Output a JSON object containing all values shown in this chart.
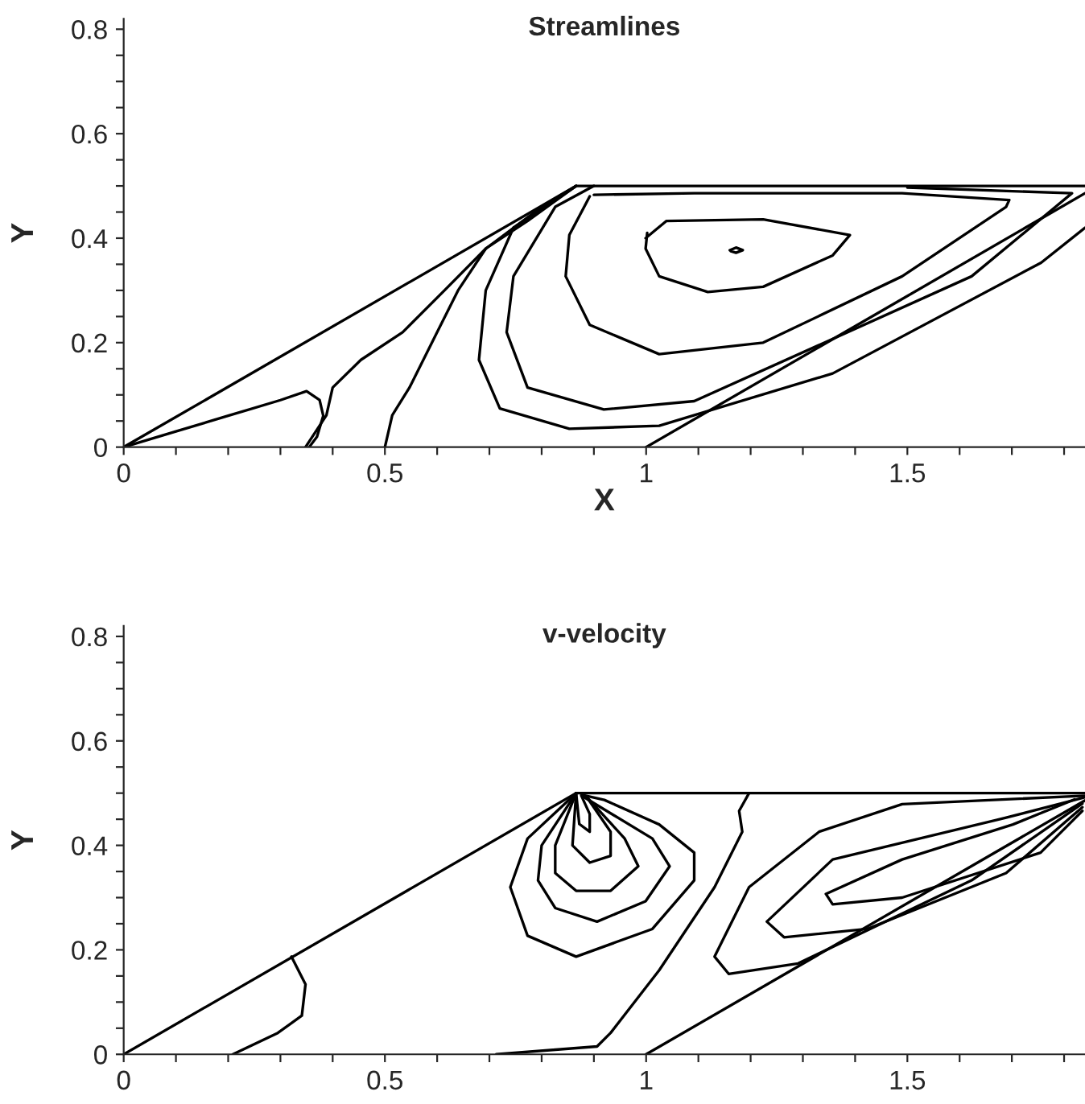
{
  "chart_data": [
    {
      "type": "line",
      "title": "Streamlines",
      "xlabel": "X",
      "ylabel": "Y",
      "xlim": [
        0,
        1.84
      ],
      "ylim": [
        0,
        0.82
      ],
      "xticks": [
        0,
        {
          "value": 0.1,
          "label": null
        },
        {
          "value": 0.2,
          "label": null
        },
        {
          "value": 0.3,
          "label": null
        },
        {
          "value": 0.4,
          "label": null
        },
        0.5,
        {
          "value": 0.6,
          "label": null
        },
        {
          "value": 0.7,
          "label": null
        },
        {
          "value": 0.8,
          "label": null
        },
        {
          "value": 0.9,
          "label": null
        },
        1,
        {
          "value": 1.1,
          "label": null
        },
        {
          "value": 1.2,
          "label": null
        },
        {
          "value": 1.3,
          "label": null
        },
        {
          "value": 1.4,
          "label": null
        },
        1.5,
        {
          "value": 1.6,
          "label": null
        },
        {
          "value": 1.7,
          "label": null
        },
        {
          "value": 1.8,
          "label": null
        }
      ],
      "yticks": [
        0,
        {
          "value": 0.05,
          "label": null
        },
        {
          "value": 0.1,
          "label": null
        },
        {
          "value": 0.15,
          "label": null
        },
        0.2,
        {
          "value": 0.25,
          "label": null
        },
        {
          "value": 0.3,
          "label": null
        },
        {
          "value": 0.35,
          "label": null
        },
        0.4,
        {
          "value": 0.45,
          "label": null
        },
        {
          "value": 0.5,
          "label": null
        },
        {
          "value": 0.55,
          "label": null
        },
        0.6,
        {
          "value": 0.65,
          "label": null
        },
        {
          "value": 0.7,
          "label": null
        },
        {
          "value": 0.75,
          "label": null
        },
        0.8
      ],
      "grid": false,
      "legend": false,
      "marker": "none",
      "line_style": "solid",
      "series": [
        {
          "color": "#000000",
          "x": [
            0,
            0.866,
            1.84
          ],
          "values": [
            0,
            0.5,
            0.5
          ]
        },
        {
          "color": "#000000",
          "x": [
            1,
            1.84
          ],
          "values": [
            0,
            0.486
          ]
        },
        {
          "color": "#000000",
          "x": [
            0,
            0.1,
            0.2,
            0.3,
            0.35,
            0.375,
            0.382,
            0.37,
            0.355
          ],
          "values": [
            0,
            0.03,
            0.06,
            0.09,
            0.107,
            0.09,
            0.06,
            0.02,
            0
          ]
        },
        {
          "color": "#000000",
          "x": [
            0.348,
            0.388,
            0.4,
            0.454,
            0.534,
            0.614,
            0.693,
            0.773,
            0.866
          ],
          "values": [
            0,
            0.061,
            0.114,
            0.167,
            0.22,
            0.3,
            0.38,
            0.433,
            0.5
          ]
        },
        {
          "color": "#000000",
          "x": [
            0.5,
            0.514,
            0.547,
            0.6,
            0.64,
            0.693,
            0.8,
            0.866
          ],
          "values": [
            0,
            0.061,
            0.114,
            0.22,
            0.3,
            0.38,
            0.46,
            0.5
          ]
        },
        {
          "color": "#000000",
          "x": [
            0.866,
            0.746,
            0.693,
            0.68,
            0.72,
            0.853,
            1.025,
            1.357,
            1.756,
            1.84
          ],
          "values": [
            0.5,
            0.42,
            0.3,
            0.167,
            0.074,
            0.035,
            0.041,
            0.141,
            0.353,
            0.42
          ]
        },
        {
          "color": "#000000",
          "x": [
            0.9,
            0.826,
            0.746,
            0.733,
            0.773,
            0.919,
            1.092,
            1.357,
            1.623,
            1.815,
            1.5
          ],
          "values": [
            0.5,
            0.46,
            0.327,
            0.22,
            0.114,
            0.072,
            0.088,
            0.207,
            0.327,
            0.486,
            0.497
          ]
        },
        {
          "color": "#000000",
          "x": [
            0.892,
            0.853,
            0.846,
            0.892,
            1.025,
            1.224,
            1.49,
            1.689,
            1.695,
            1.49,
            1.092,
            0.9
          ],
          "values": [
            0.48,
            0.406,
            0.327,
            0.234,
            0.178,
            0.2,
            0.327,
            0.46,
            0.473,
            0.486,
            0.486,
            0.483
          ]
        },
        {
          "color": "#000000",
          "x": [
            0.999,
            1.039,
            1.224,
            1.39,
            1.357,
            1.224,
            1.118,
            1.025,
            0.999,
            1.002
          ],
          "values": [
            0.4,
            0.433,
            0.436,
            0.406,
            0.367,
            0.307,
            0.297,
            0.327,
            0.38,
            0.41
          ]
        },
        {
          "color": "#000000",
          "x": [
            1.16,
            1.172,
            1.185,
            1.172,
            1.162
          ],
          "values": [
            0.377,
            0.382,
            0.377,
            0.372,
            0.375
          ]
        }
      ]
    },
    {
      "type": "line",
      "title": "v-velocity",
      "ylabel": "Y",
      "xlim": [
        0,
        1.84
      ],
      "ylim": [
        0,
        0.82
      ],
      "xticks": [
        0,
        {
          "value": 0.1,
          "label": null
        },
        {
          "value": 0.2,
          "label": null
        },
        {
          "value": 0.3,
          "label": null
        },
        {
          "value": 0.4,
          "label": null
        },
        0.5,
        {
          "value": 0.6,
          "label": null
        },
        {
          "value": 0.7,
          "label": null
        },
        {
          "value": 0.8,
          "label": null
        },
        {
          "value": 0.9,
          "label": null
        },
        1,
        {
          "value": 1.1,
          "label": null
        },
        {
          "value": 1.2,
          "label": null
        },
        {
          "value": 1.3,
          "label": null
        },
        {
          "value": 1.4,
          "label": null
        },
        1.5,
        {
          "value": 1.6,
          "label": null
        },
        {
          "value": 1.7,
          "label": null
        },
        {
          "value": 1.8,
          "label": null
        }
      ],
      "yticks": [
        0,
        {
          "value": 0.05,
          "label": null
        },
        {
          "value": 0.1,
          "label": null
        },
        {
          "value": 0.15,
          "label": null
        },
        0.2,
        {
          "value": 0.25,
          "label": null
        },
        {
          "value": 0.3,
          "label": null
        },
        {
          "value": 0.35,
          "label": null
        },
        0.4,
        {
          "value": 0.45,
          "label": null
        },
        {
          "value": 0.5,
          "label": null
        },
        {
          "value": 0.55,
          "label": null
        },
        0.6,
        {
          "value": 0.65,
          "label": null
        },
        {
          "value": 0.7,
          "label": null
        },
        {
          "value": 0.75,
          "label": null
        },
        0.8
      ],
      "grid": false,
      "legend": false,
      "marker": "none",
      "line_style": "solid",
      "series": [
        {
          "color": "#000000",
          "x": [
            0,
            0.866,
            1.84
          ],
          "values": [
            0,
            0.5,
            0.5
          ]
        },
        {
          "color": "#000000",
          "x": [
            1,
            1.84
          ],
          "values": [
            0,
            0.486
          ]
        },
        {
          "color": "#000000",
          "x": [
            0.321,
            0.348,
            0.341,
            0.295,
            0.209
          ],
          "values": [
            0.187,
            0.134,
            0.074,
            0.041,
            0
          ]
        },
        {
          "color": "#000000",
          "x": [
            0.713,
            0.906,
            0.932,
            1.025,
            1.131,
            1.184,
            1.178,
            1.197
          ],
          "values": [
            0,
            0.015,
            0.041,
            0.161,
            0.32,
            0.426,
            0.466,
            0.5
          ]
        },
        {
          "color": "#000000",
          "x": [
            0.866,
            0.773,
            0.74,
            0.773,
            0.866,
            1.012,
            1.092,
            1.092,
            1.025,
            0.92,
            0.876
          ],
          "values": [
            0.5,
            0.413,
            0.32,
            0.227,
            0.187,
            0.24,
            0.333,
            0.386,
            0.44,
            0.487,
            0.497
          ]
        },
        {
          "color": "#000000",
          "x": [
            0.866,
            0.8,
            0.793,
            0.826,
            0.906,
            0.999,
            1.045,
            1.012,
            0.88
          ],
          "values": [
            0.5,
            0.4,
            0.333,
            0.28,
            0.254,
            0.293,
            0.36,
            0.413,
            0.493
          ]
        },
        {
          "color": "#000000",
          "x": [
            0.866,
            0.826,
            0.826,
            0.866,
            0.932,
            0.985,
            0.959,
            0.886
          ],
          "values": [
            0.5,
            0.4,
            0.347,
            0.313,
            0.313,
            0.36,
            0.413,
            0.493
          ]
        },
        {
          "color": "#000000",
          "x": [
            0.866,
            0.859,
            0.892,
            0.932,
            0.932,
            0.886
          ],
          "values": [
            0.5,
            0.4,
            0.367,
            0.38,
            0.426,
            0.493
          ]
        },
        {
          "color": "#000000",
          "x": [
            0.866,
            0.872,
            0.892,
            0.892,
            0.876
          ],
          "values": [
            0.5,
            0.441,
            0.426,
            0.46,
            0.495
          ]
        },
        {
          "color": "#000000",
          "x": [
            1.84,
            1.49,
            1.331,
            1.197,
            1.131,
            1.158,
            1.291,
            1.623,
            1.835
          ],
          "values": [
            0.495,
            0.479,
            0.426,
            0.32,
            0.187,
            0.154,
            0.174,
            0.333,
            0.48
          ]
        },
        {
          "color": "#000000",
          "x": [
            1.84,
            1.689,
            1.357,
            1.231,
            1.264,
            1.423,
            1.689,
            1.835
          ],
          "values": [
            0.492,
            0.453,
            0.373,
            0.254,
            0.224,
            0.24,
            0.347,
            0.473
          ]
        },
        {
          "color": "#000000",
          "x": [
            1.82,
            1.702,
            1.49,
            1.344,
            1.357,
            1.49,
            1.755,
            1.835
          ],
          "values": [
            0.488,
            0.44,
            0.373,
            0.307,
            0.287,
            0.3,
            0.386,
            0.466
          ]
        }
      ]
    }
  ]
}
